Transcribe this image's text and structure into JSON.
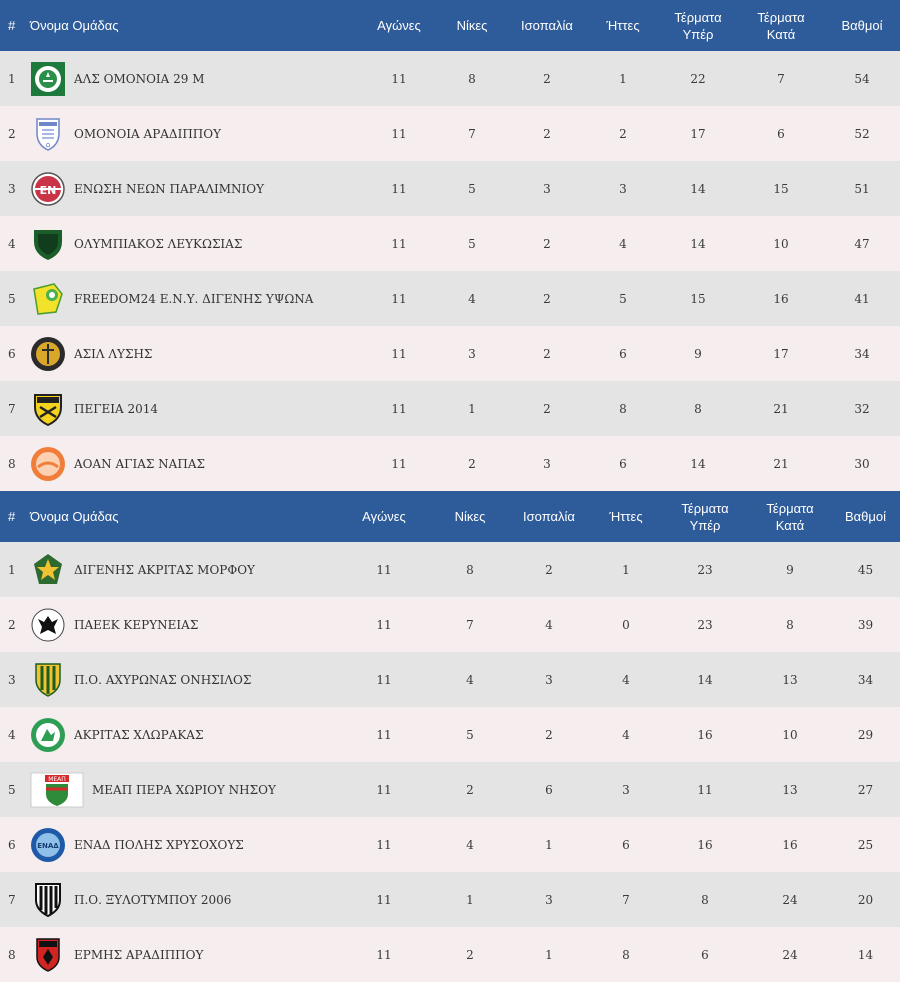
{
  "headers": {
    "pos": "#",
    "team": "Όνομα Ομάδας",
    "played": "Αγώνες",
    "wins": "Νίκες",
    "draws": "Ισοπαλία",
    "losses": "Ήττες",
    "goals_for_1": "Τέρματα",
    "goals_for_2": "Υπέρ",
    "goals_against_1": "Τέρματα",
    "goals_against_2": "Κατά",
    "points": "Βαθμοί"
  },
  "tables": [
    {
      "rows": [
        {
          "pos": "1",
          "team": "ΑΛΣ ΟΜΟΝΟΙΑ 29 Μ",
          "logo": "omonoia-29m-crest-icon",
          "played": "11",
          "wins": "8",
          "draws": "2",
          "losses": "1",
          "gf": "22",
          "ga": "7",
          "pts": "54"
        },
        {
          "pos": "2",
          "team": "ΟΜΟΝΟΙΑ ΑΡΑΔΙΠΠΟΥ",
          "logo": "omonoia-aradippou-crest-icon",
          "played": "11",
          "wins": "7",
          "draws": "2",
          "losses": "2",
          "gf": "17",
          "ga": "6",
          "pts": "52"
        },
        {
          "pos": "3",
          "team": "ΕΝΩΣΗ ΝΕΩΝ ΠΑΡΑΛΙΜΝΙΟΥ",
          "logo": "enp-crest-icon",
          "played": "11",
          "wins": "5",
          "draws": "3",
          "losses": "3",
          "gf": "14",
          "ga": "15",
          "pts": "51"
        },
        {
          "pos": "4",
          "team": "ΟΛΥΜΠΙΑΚΟΣ ΛΕΥΚΩΣΙΑΣ",
          "logo": "olympiakos-crest-icon",
          "played": "11",
          "wins": "5",
          "draws": "2",
          "losses": "4",
          "gf": "14",
          "ga": "10",
          "pts": "47"
        },
        {
          "pos": "5",
          "team": "FREEDOM24 Ε.Ν.Υ. ΔΙΓΕΝΗΣ ΥΨΩΝΑ",
          "logo": "digenis-ypsona-crest-icon",
          "played": "11",
          "wins": "4",
          "draws": "2",
          "losses": "5",
          "gf": "15",
          "ga": "16",
          "pts": "41"
        },
        {
          "pos": "6",
          "team": "ΑΣΙΛ ΛΥΣΗΣ",
          "logo": "asil-crest-icon",
          "played": "11",
          "wins": "3",
          "draws": "2",
          "losses": "6",
          "gf": "9",
          "ga": "17",
          "pts": "34"
        },
        {
          "pos": "7",
          "team": "ΠΕΓΕΙΑ 2014",
          "logo": "pegeia-crest-icon",
          "played": "11",
          "wins": "1",
          "draws": "2",
          "losses": "8",
          "gf": "8",
          "ga": "21",
          "pts": "32"
        },
        {
          "pos": "8",
          "team": "ΑΟΑΝ ΑΓΙΑΣ ΝΑΠΑΣ",
          "logo": "aoan-crest-icon",
          "played": "11",
          "wins": "2",
          "draws": "3",
          "losses": "6",
          "gf": "14",
          "ga": "21",
          "pts": "30"
        }
      ]
    },
    {
      "rows": [
        {
          "pos": "1",
          "team": "ΔΙΓΕΝΗΣ ΑΚΡΙΤΑΣ ΜΟΡΦΟΥ",
          "logo": "digenis-morfou-crest-icon",
          "played": "11",
          "wins": "8",
          "draws": "2",
          "losses": "1",
          "gf": "23",
          "ga": "9",
          "pts": "45"
        },
        {
          "pos": "2",
          "team": "ΠΑΕΕΚ ΚΕΡΥΝΕΙΑΣ",
          "logo": "paeek-crest-icon",
          "played": "11",
          "wins": "7",
          "draws": "4",
          "losses": "0",
          "gf": "23",
          "ga": "8",
          "pts": "39"
        },
        {
          "pos": "3",
          "team": "Π.Ο. ΑΧΥΡΩΝΑΣ ΟΝΗΣΙΛΟΣ",
          "logo": "achyronas-crest-icon",
          "played": "11",
          "wins": "4",
          "draws": "3",
          "losses": "4",
          "gf": "14",
          "ga": "13",
          "pts": "34"
        },
        {
          "pos": "4",
          "team": "ΑΚΡΙΤΑΣ ΧΛΩΡΑΚΑΣ",
          "logo": "akritas-chlorakas-crest-icon",
          "played": "11",
          "wins": "5",
          "draws": "2",
          "losses": "4",
          "gf": "16",
          "ga": "10",
          "pts": "29"
        },
        {
          "pos": "5",
          "team": "ΜΕΑΠ ΠΕΡΑ ΧΩΡΙΟΥ ΝΗΣΟΥ",
          "logo": "meap-crest-icon",
          "played": "11",
          "wins": "2",
          "draws": "6",
          "losses": "3",
          "gf": "11",
          "ga": "13",
          "pts": "27"
        },
        {
          "pos": "6",
          "team": "ΕΝΑΔ ΠΟΛΗΣ ΧΡΥΣΟΧΟΥΣ",
          "logo": "enad-crest-icon",
          "played": "11",
          "wins": "4",
          "draws": "1",
          "losses": "6",
          "gf": "16",
          "ga": "16",
          "pts": "25"
        },
        {
          "pos": "7",
          "team": "Π.Ο. ΞΥΛΟΤΥΜΠΟΥ 2006",
          "logo": "xylotymbou-crest-icon",
          "played": "11",
          "wins": "1",
          "draws": "3",
          "losses": "7",
          "gf": "8",
          "ga": "24",
          "pts": "20"
        },
        {
          "pos": "8",
          "team": "ΕΡΜΗΣ ΑΡΑΔΙΠΠΟΥ",
          "logo": "ermis-crest-icon",
          "played": "11",
          "wins": "2",
          "draws": "1",
          "losses": "8",
          "gf": "6",
          "ga": "24",
          "pts": "14"
        }
      ]
    }
  ],
  "colors": {
    "header_bg": "#2e5b99",
    "row_odd": "#e4e4e4",
    "row_even": "#f6eeee"
  }
}
